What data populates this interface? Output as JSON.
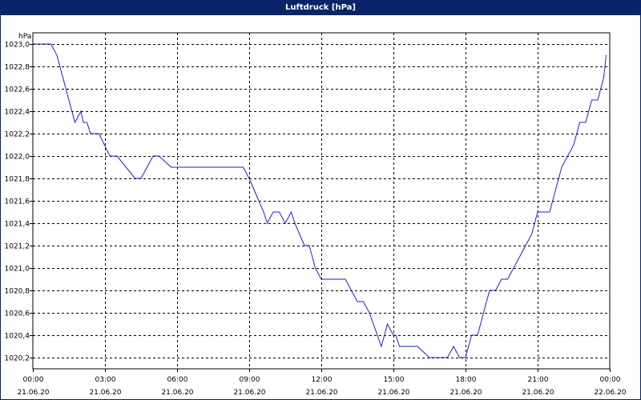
{
  "window": {
    "title": "Luftdruck [hPa]"
  },
  "colors": {
    "titlebar": "#0a246a",
    "series": "#1f1fcc",
    "grid": "#000000",
    "background": "#ffffff"
  },
  "chart_data": {
    "type": "line",
    "title": "Luftdruck [hPa]",
    "ylabel": "hPa",
    "xlabel": "",
    "ylim": [
      1020.1,
      1023.1
    ],
    "xlim": [
      0,
      24
    ],
    "grid": true,
    "y_ticks": [
      {
        "value": 1023.0,
        "label": "1023,0"
      },
      {
        "value": 1022.8,
        "label": "1022,8"
      },
      {
        "value": 1022.6,
        "label": "1022,6"
      },
      {
        "value": 1022.4,
        "label": "1022,4"
      },
      {
        "value": 1022.2,
        "label": "1022,2"
      },
      {
        "value": 1022.0,
        "label": "1022,0"
      },
      {
        "value": 1021.8,
        "label": "1021,8"
      },
      {
        "value": 1021.6,
        "label": "1021,6"
      },
      {
        "value": 1021.4,
        "label": "1021,4"
      },
      {
        "value": 1021.2,
        "label": "1021,2"
      },
      {
        "value": 1021.0,
        "label": "1021,0"
      },
      {
        "value": 1020.8,
        "label": "1020,8"
      },
      {
        "value": 1020.6,
        "label": "1020,6"
      },
      {
        "value": 1020.4,
        "label": "1020,4"
      },
      {
        "value": 1020.2,
        "label": "1020,2"
      }
    ],
    "x_ticks": [
      {
        "value": 0,
        "time": "00:00",
        "date": "21.06.20"
      },
      {
        "value": 3,
        "time": "03:00",
        "date": "21.06.20"
      },
      {
        "value": 6,
        "time": "06:00",
        "date": "21.06.20"
      },
      {
        "value": 9,
        "time": "09:00",
        "date": "21.06.20"
      },
      {
        "value": 12,
        "time": "12:00",
        "date": "21.06.20"
      },
      {
        "value": 15,
        "time": "15:00",
        "date": "21.06.20"
      },
      {
        "value": 18,
        "time": "18:00",
        "date": "21.06.20"
      },
      {
        "value": 21,
        "time": "21:00",
        "date": "21.06.20"
      },
      {
        "value": 24,
        "time": "00:00",
        "date": "22.06.20"
      }
    ],
    "series": [
      {
        "name": "",
        "x": [
          0,
          0.75,
          1,
          1.25,
          1.5,
          1.75,
          2,
          2.1,
          2.25,
          2.4,
          2.6,
          2.75,
          3.2,
          3.5,
          4.25,
          4.5,
          4.75,
          5,
          5.25,
          5.75,
          6,
          6.25,
          7,
          8,
          8.75,
          9,
          9.2,
          9.4,
          9.6,
          9.75,
          10,
          10.25,
          10.5,
          10.75,
          10.9,
          11.1,
          11.3,
          11.5,
          11.75,
          12,
          12.25,
          12.5,
          13,
          13.5,
          13.75,
          14,
          14.5,
          14.75,
          15,
          15.1,
          15.25,
          15.5,
          15.75,
          16,
          16.5,
          16.75,
          17.25,
          17.5,
          17.75,
          18,
          18.25,
          18.5,
          18.75,
          19,
          19.25,
          19.5,
          19.75,
          20,
          20.25,
          20.5,
          20.75,
          21,
          21.25,
          21.5,
          21.75,
          22,
          22.25,
          22.5,
          22.75,
          23,
          23.25,
          23.5,
          23.75,
          23.85
        ],
        "y": [
          1023.0,
          1023.0,
          1022.9,
          1022.7,
          1022.5,
          1022.3,
          1022.4,
          1022.3,
          1022.3,
          1022.2,
          1022.2,
          1022.2,
          1022.0,
          1022.0,
          1021.8,
          1021.8,
          1021.9,
          1022.0,
          1022.0,
          1021.9,
          1021.9,
          1021.9,
          1021.9,
          1021.9,
          1021.9,
          1021.8,
          1021.7,
          1021.6,
          1021.5,
          1021.4,
          1021.5,
          1021.5,
          1021.4,
          1021.5,
          1021.4,
          1021.3,
          1021.2,
          1021.2,
          1021.0,
          1020.9,
          1020.9,
          1020.9,
          1020.9,
          1020.7,
          1020.7,
          1020.6,
          1020.3,
          1020.5,
          1020.4,
          1020.4,
          1020.3,
          1020.3,
          1020.3,
          1020.3,
          1020.2,
          1020.2,
          1020.2,
          1020.3,
          1020.2,
          1020.2,
          1020.4,
          1020.4,
          1020.6,
          1020.8,
          1020.8,
          1020.9,
          1020.9,
          1021.0,
          1021.1,
          1021.2,
          1021.3,
          1021.5,
          1021.5,
          1021.5,
          1021.7,
          1021.9,
          1022.0,
          1022.1,
          1022.3,
          1022.3,
          1022.5,
          1022.5,
          1022.7,
          1022.9
        ]
      }
    ]
  }
}
